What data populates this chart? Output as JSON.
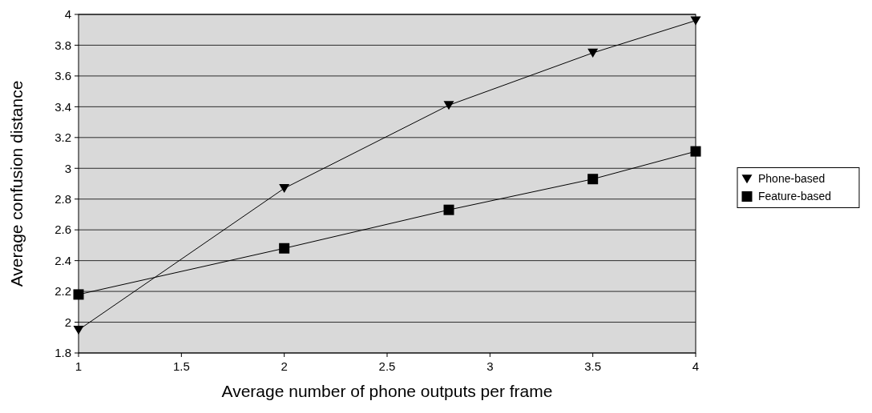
{
  "chart_data": {
    "type": "line",
    "xlabel": "Average number of phone outputs per frame",
    "ylabel": "Average confusion distance",
    "x": [
      1,
      2,
      2.8,
      3.5,
      4
    ],
    "series": [
      {
        "name": "Phone-based",
        "color": "#000000",
        "marker": "triangle",
        "values": [
          1.95,
          2.87,
          3.41,
          3.75,
          3.96
        ]
      },
      {
        "name": "Feature-based",
        "color": "#000000",
        "marker": "square",
        "values": [
          2.18,
          2.48,
          2.73,
          2.93,
          3.11
        ]
      }
    ],
    "xlim": [
      1,
      4
    ],
    "xticks": [
      1,
      1.5,
      2,
      2.5,
      3,
      3.5,
      4
    ],
    "ylim": [
      1.8,
      4
    ],
    "yticks": [
      1.8,
      2,
      2.2,
      2.4,
      2.6,
      2.8,
      3,
      3.2,
      3.4,
      3.6,
      3.8,
      4
    ],
    "grid": "y",
    "legend": "right",
    "line_style": "solid"
  }
}
